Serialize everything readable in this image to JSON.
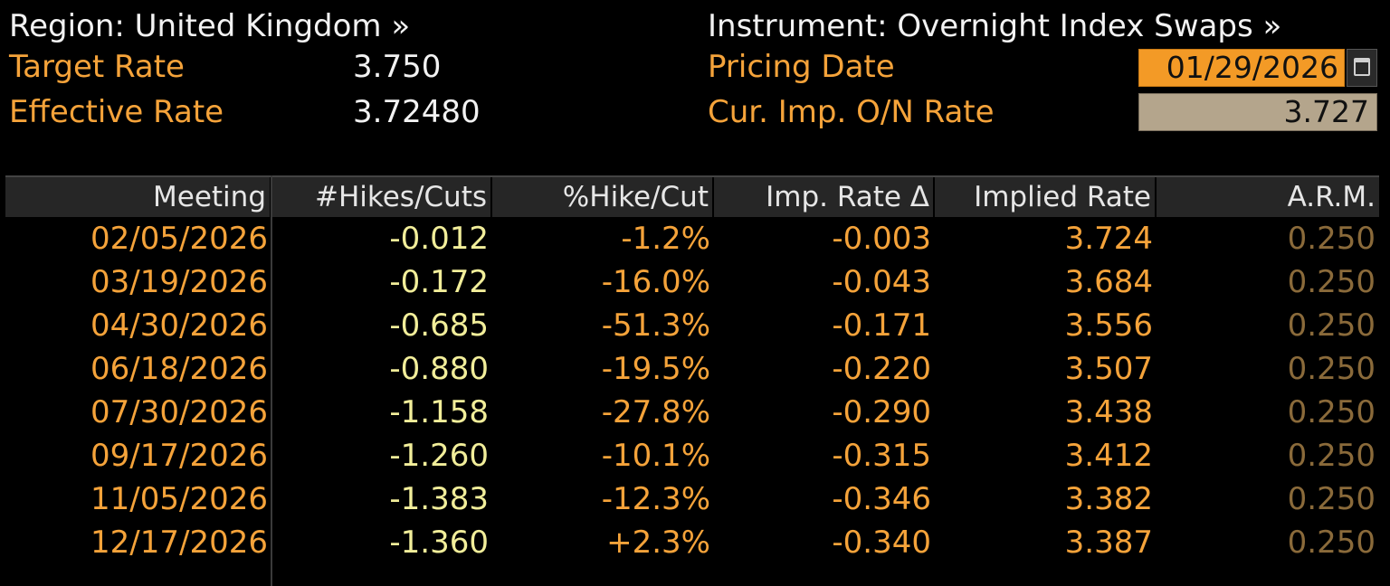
{
  "header": {
    "region_label": "Region: United Kingdom »",
    "instrument_label": "Instrument: Overnight Index Swaps »",
    "target_rate_label": "Target Rate",
    "target_rate_value": "3.750",
    "effective_rate_label": "Effective Rate",
    "effective_rate_value": "3.72480",
    "pricing_date_label": "Pricing Date",
    "pricing_date_value": "01/29/2026",
    "cur_imp_label": "Cur. Imp. O/N Rate",
    "cur_imp_value": "3.727"
  },
  "table": {
    "columns": [
      "Meeting",
      "#Hikes/Cuts",
      "%Hike/Cut",
      "Imp. Rate Δ",
      "Implied Rate",
      "A.R.M."
    ],
    "rows": [
      [
        "02/05/2026",
        "-0.012",
        "-1.2%",
        "-0.003",
        "3.724",
        "0.250"
      ],
      [
        "03/19/2026",
        "-0.172",
        "-16.0%",
        "-0.043",
        "3.684",
        "0.250"
      ],
      [
        "04/30/2026",
        "-0.685",
        "-51.3%",
        "-0.171",
        "3.556",
        "0.250"
      ],
      [
        "06/18/2026",
        "-0.880",
        "-19.5%",
        "-0.220",
        "3.507",
        "0.250"
      ],
      [
        "07/30/2026",
        "-1.158",
        "-27.8%",
        "-0.290",
        "3.438",
        "0.250"
      ],
      [
        "09/17/2026",
        "-1.260",
        "-10.1%",
        "-0.315",
        "3.412",
        "0.250"
      ],
      [
        "11/05/2026",
        "-1.383",
        "-12.3%",
        "-0.346",
        "3.382",
        "0.250"
      ],
      [
        "12/17/2026",
        "-1.360",
        "+2.3%",
        "-0.340",
        "3.387",
        "0.250"
      ]
    ]
  },
  "icons": {
    "calendar": "calendar-icon"
  },
  "colors": {
    "background": "#000000",
    "label_orange": "#f5a33a",
    "date_field": "#f39a26",
    "rate_field": "#b4a58c",
    "hikes_yellow": "#f2ee9a",
    "arm_muted": "#8a6a3a"
  }
}
